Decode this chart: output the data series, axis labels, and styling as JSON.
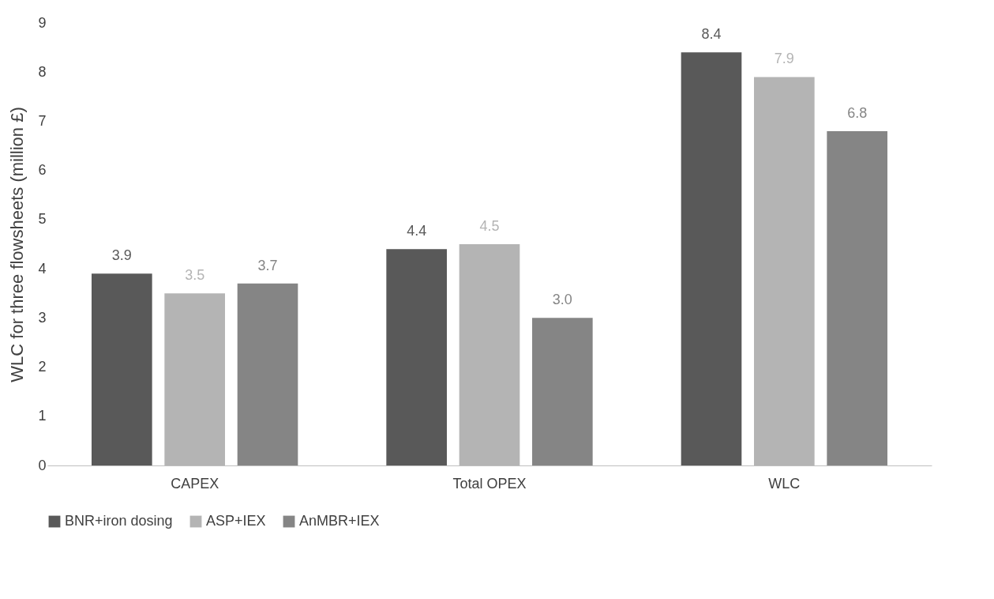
{
  "chart_data": {
    "type": "bar",
    "ylabel": "WLC for three flowsheets (million £)",
    "categories": [
      "CAPEX",
      "Total OPEX",
      "WLC"
    ],
    "series": [
      {
        "name": "BNR+iron dosing",
        "color": "#595959",
        "values": [
          3.9,
          4.4,
          8.4
        ],
        "value_labels": [
          "3.9",
          "4.4",
          "8.4"
        ]
      },
      {
        "name": "ASP+IEX",
        "color": "#b4b4b4",
        "values": [
          3.5,
          4.5,
          7.9
        ],
        "value_labels": [
          "3.5",
          "4.5",
          "7.9"
        ]
      },
      {
        "name": "AnMBR+IEX",
        "color": "#858585",
        "values": [
          3.7,
          3.0,
          6.8
        ],
        "value_labels": [
          "3.7",
          "3.0",
          "6.8"
        ]
      }
    ],
    "ylim": [
      0,
      9
    ],
    "yticks": [
      0,
      1,
      2,
      3,
      4,
      5,
      6,
      7,
      8,
      9
    ],
    "grid": false,
    "legend": "bottom"
  }
}
